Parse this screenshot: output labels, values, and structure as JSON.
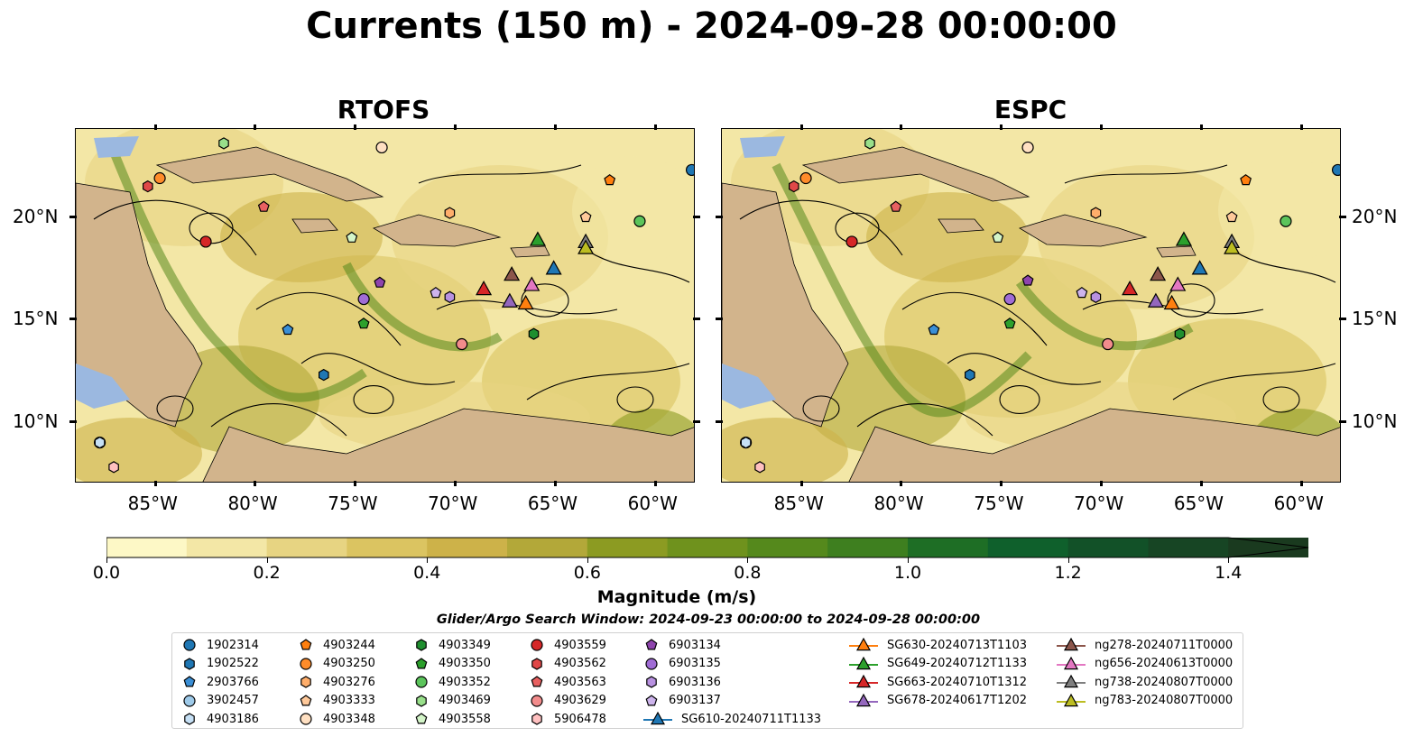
{
  "title": "Currents (150 m) - 2024-09-28 00:00:00",
  "panels": [
    {
      "title": "RTOFS"
    },
    {
      "title": "ESPC"
    }
  ],
  "axes": {
    "lat_labels": [
      "20°N",
      "15°N",
      "10°N"
    ],
    "lon_labels": [
      "85°W",
      "80°W",
      "75°W",
      "70°W",
      "65°W",
      "60°W"
    ]
  },
  "colorbar": {
    "title": "Magnitude (m/s)",
    "tick_labels": [
      "0.0",
      "0.2",
      "0.4",
      "0.6",
      "0.8",
      "1.0",
      "1.2",
      "1.4"
    ],
    "range": [
      0.0,
      1.5
    ],
    "extend": "max",
    "colors": [
      "#fdf8c6",
      "#f3e7a6",
      "#e7d482",
      "#dbc461",
      "#cdb249",
      "#b3a839",
      "#8c9b22",
      "#6f921d",
      "#55891c",
      "#3e7f1f",
      "#1e6e25",
      "#0f602c",
      "#125128",
      "#174524",
      "#1a3a1f"
    ]
  },
  "search_window": "Glider/Argo Search Window: 2024-09-23 00:00:00 to 2024-09-28 00:00:00",
  "legend": {
    "argo": [
      {
        "id": "1902314",
        "color": "#1f77b4",
        "marker": "circle"
      },
      {
        "id": "1902522",
        "color": "#1f77b4",
        "marker": "hexagon"
      },
      {
        "id": "2903766",
        "color": "#3a8fd6",
        "marker": "pentagon"
      },
      {
        "id": "3902457",
        "color": "#9ecae9",
        "marker": "circle"
      },
      {
        "id": "4903186",
        "color": "#c6e0f5",
        "marker": "hexagon"
      },
      {
        "id": "4903244",
        "color": "#ff7f0e",
        "marker": "pentagon"
      },
      {
        "id": "4903250",
        "color": "#ff8c2a",
        "marker": "circle"
      },
      {
        "id": "4903276",
        "color": "#ffae6b",
        "marker": "hexagon"
      },
      {
        "id": "4903333",
        "color": "#ffc99a",
        "marker": "pentagon"
      },
      {
        "id": "4903348",
        "color": "#ffe0c2",
        "marker": "circle"
      },
      {
        "id": "4903349",
        "color": "#1f8f2f",
        "marker": "hexagon"
      },
      {
        "id": "4903350",
        "color": "#2ca02c",
        "marker": "pentagon"
      },
      {
        "id": "4903352",
        "color": "#5bc45b",
        "marker": "circle"
      },
      {
        "id": "4903469",
        "color": "#98df8a",
        "marker": "hexagon"
      },
      {
        "id": "4903558",
        "color": "#d4f5c9",
        "marker": "pentagon"
      },
      {
        "id": "4903559",
        "color": "#d62728",
        "marker": "circle"
      },
      {
        "id": "4903562",
        "color": "#e04848",
        "marker": "hexagon"
      },
      {
        "id": "4903563",
        "color": "#e86161",
        "marker": "pentagon"
      },
      {
        "id": "4903629",
        "color": "#f28c8c",
        "marker": "circle"
      },
      {
        "id": "5906478",
        "color": "#ffc0c0",
        "marker": "hexagon"
      },
      {
        "id": "6903134",
        "color": "#8e44ad",
        "marker": "pentagon"
      },
      {
        "id": "6903135",
        "color": "#a06cd5",
        "marker": "circle"
      },
      {
        "id": "6903136",
        "color": "#b891e0",
        "marker": "hexagon"
      },
      {
        "id": "6903137",
        "color": "#cdb4ec",
        "marker": "pentagon"
      }
    ],
    "gliders": [
      {
        "id": "SG610-20240711T1133",
        "color": "#1f77b4"
      },
      {
        "id": "SG630-20240713T1103",
        "color": "#ff7f0e"
      },
      {
        "id": "SG649-20240712T1133",
        "color": "#2ca02c"
      },
      {
        "id": "SG663-20240710T1312",
        "color": "#d62728"
      },
      {
        "id": "SG678-20240617T1202",
        "color": "#9467bd"
      },
      {
        "id": "ng278-20240711T0000",
        "color": "#8c564b"
      },
      {
        "id": "ng656-20240613T0000",
        "color": "#e377c2"
      },
      {
        "id": "ng738-20240807T0000",
        "color": "#7f7f7f"
      },
      {
        "id": "ng783-20240807T0000",
        "color": "#bcbd22"
      }
    ]
  }
}
